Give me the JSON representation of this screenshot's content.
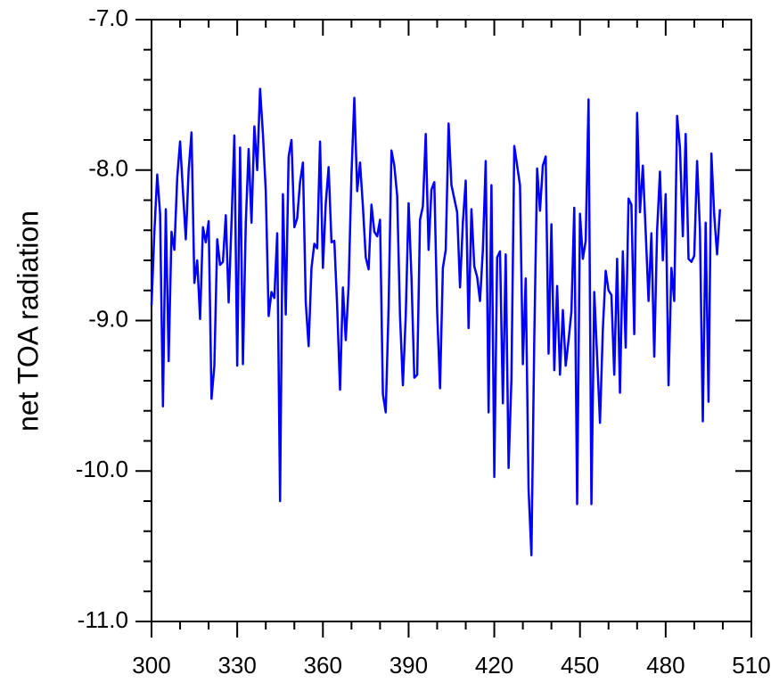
{
  "chart_data": {
    "type": "line",
    "y_label": "net TOA radiation",
    "color": "#0000ff",
    "xlim": [
      300,
      510
    ],
    "xticks": [
      300,
      330,
      360,
      390,
      420,
      450,
      480,
      510
    ],
    "xminorticks": [
      310,
      320,
      340,
      350,
      370,
      380,
      400,
      410,
      430,
      440,
      460,
      470,
      490,
      500
    ],
    "ylim": [
      -11,
      -7
    ],
    "yticks": [
      {
        "value": -11,
        "label": "-11.0"
      },
      {
        "value": -10,
        "label": "-10.0"
      },
      {
        "value": -9,
        "label": "-9.0"
      },
      {
        "value": -8,
        "label": "-8.0"
      },
      {
        "value": -7,
        "label": "-7.0"
      }
    ],
    "yminorticks": [
      -10.8,
      -10.6,
      -10.4,
      -10.2,
      -9.8,
      -9.6,
      -9.4,
      -9.2,
      -8.8,
      -8.6,
      -8.4,
      -8.2,
      -7.8,
      -7.6,
      -7.4,
      -7.2
    ],
    "x": [
      300,
      301,
      302,
      303,
      304,
      305,
      306,
      307,
      308,
      309,
      310,
      311,
      312,
      313,
      314,
      315,
      316,
      317,
      318,
      319,
      320,
      321,
      322,
      323,
      324,
      325,
      326,
      327,
      328,
      329,
      330,
      331,
      332,
      333,
      334,
      335,
      336,
      337,
      338,
      339,
      340,
      341,
      342,
      343,
      344,
      345,
      346,
      347,
      348,
      349,
      350,
      351,
      352,
      353,
      354,
      355,
      356,
      357,
      358,
      359,
      360,
      361,
      362,
      363,
      364,
      365,
      366,
      367,
      368,
      369,
      370,
      371,
      372,
      373,
      374,
      375,
      376,
      377,
      378,
      379,
      380,
      381,
      382,
      383,
      384,
      385,
      386,
      387,
      388,
      389,
      390,
      391,
      392,
      393,
      394,
      395,
      396,
      397,
      398,
      399,
      400,
      401,
      402,
      403,
      404,
      405,
      406,
      407,
      408,
      409,
      410,
      411,
      412,
      413,
      414,
      415,
      416,
      417,
      418,
      419,
      420,
      421,
      422,
      423,
      424,
      425,
      426,
      427,
      428,
      429,
      430,
      431,
      432,
      433,
      434,
      435,
      436,
      437,
      438,
      439,
      440,
      441,
      442,
      443,
      444,
      445,
      446,
      447,
      448,
      449,
      450,
      451,
      452,
      453,
      454,
      455,
      456,
      457,
      458,
      459,
      460,
      461,
      462,
      463,
      464,
      465,
      466,
      467,
      468,
      469,
      470,
      471,
      472,
      473,
      474,
      475,
      476,
      477,
      478,
      479,
      480,
      481,
      482,
      483,
      484,
      485,
      486,
      487,
      488,
      489,
      490,
      491,
      492,
      493,
      494,
      495,
      496,
      497,
      498,
      499
    ],
    "values": [
      -8.9,
      -8.41,
      -8.03,
      -8.29,
      -9.57,
      -8.26,
      -9.27,
      -8.41,
      -8.53,
      -8.05,
      -7.81,
      -8.14,
      -8.46,
      -8.0,
      -7.75,
      -8.75,
      -8.6,
      -8.99,
      -8.38,
      -8.48,
      -8.34,
      -9.52,
      -9.3,
      -8.46,
      -8.63,
      -8.61,
      -8.3,
      -8.88,
      -8.35,
      -7.77,
      -9.3,
      -7.85,
      -9.29,
      -8.35,
      -7.86,
      -8.35,
      -7.71,
      -8.0,
      -7.46,
      -7.76,
      -8.14,
      -8.97,
      -8.81,
      -8.85,
      -8.42,
      -10.2,
      -8.16,
      -8.96,
      -7.91,
      -7.8,
      -8.38,
      -8.32,
      -8.08,
      -7.95,
      -8.88,
      -9.17,
      -8.65,
      -8.49,
      -8.52,
      -7.81,
      -8.65,
      -8.22,
      -7.98,
      -8.48,
      -8.47,
      -8.91,
      -9.46,
      -8.78,
      -9.13,
      -8.77,
      -8.03,
      -7.52,
      -8.14,
      -7.95,
      -8.24,
      -8.58,
      -8.66,
      -8.23,
      -8.41,
      -8.44,
      -8.33,
      -9.49,
      -9.61,
      -8.91,
      -7.87,
      -7.97,
      -8.17,
      -8.97,
      -9.43,
      -8.97,
      -8.22,
      -8.71,
      -9.38,
      -9.36,
      -8.33,
      -8.24,
      -7.76,
      -8.53,
      -8.13,
      -8.08,
      -8.94,
      -9.45,
      -8.65,
      -8.53,
      -7.69,
      -8.1,
      -8.19,
      -8.28,
      -8.78,
      -8.35,
      -8.07,
      -9.05,
      -8.26,
      -8.64,
      -8.71,
      -8.87,
      -8.53,
      -7.94,
      -9.61,
      -8.1,
      -10.04,
      -8.58,
      -8.54,
      -9.55,
      -8.56,
      -9.98,
      -9.39,
      -7.84,
      -7.97,
      -8.1,
      -9.29,
      -8.72,
      -10.12,
      -10.56,
      -9.12,
      -7.99,
      -8.27,
      -7.97,
      -7.91,
      -9.22,
      -8.36,
      -9.33,
      -8.77,
      -9.36,
      -8.93,
      -9.3,
      -9.13,
      -8.94,
      -8.25,
      -10.22,
      -8.29,
      -8.59,
      -8.47,
      -7.53,
      -10.22,
      -8.81,
      -9.24,
      -9.68,
      -9.06,
      -8.67,
      -8.8,
      -8.83,
      -9.36,
      -8.59,
      -9.48,
      -8.54,
      -9.18,
      -8.19,
      -8.23,
      -9.09,
      -7.62,
      -8.28,
      -7.97,
      -8.41,
      -8.87,
      -8.42,
      -9.24,
      -8.4,
      -8.01,
      -8.6,
      -8.16,
      -9.43,
      -8.65,
      -8.87,
      -7.64,
      -7.85,
      -8.44,
      -7.76,
      -8.59,
      -8.61,
      -8.57,
      -7.94,
      -8.4,
      -9.67,
      -8.35,
      -9.54,
      -7.89,
      -8.3,
      -8.56,
      -8.26
    ]
  }
}
